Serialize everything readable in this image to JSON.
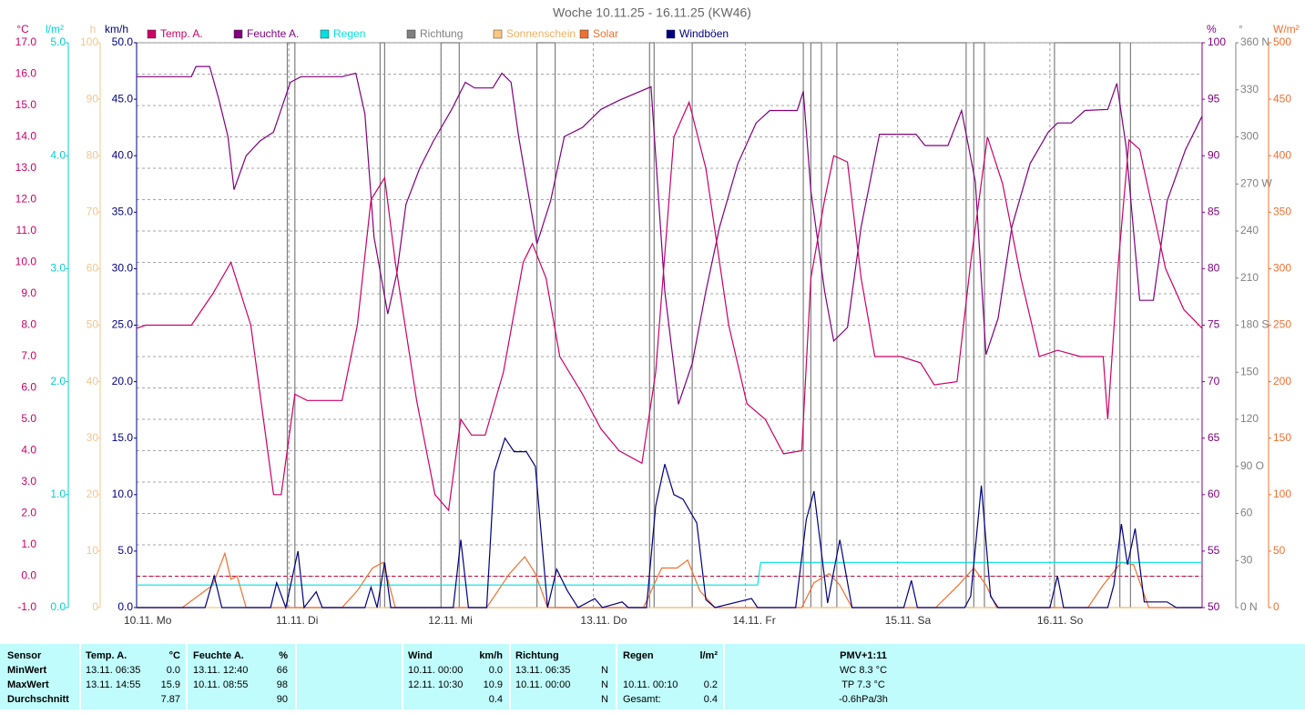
{
  "chart_data": {
    "type": "line",
    "title": "Woche 10.11.25 - 16.11.25 (KW46)",
    "xlim": [
      0,
      7
    ],
    "xticks": [
      {
        "value": 0,
        "label": "10.11. Mo"
      },
      {
        "value": 1,
        "label": "11.11. Di"
      },
      {
        "value": 2,
        "label": "12.11. Mi"
      },
      {
        "value": 3,
        "label": "13.11. Do"
      },
      {
        "value": 4,
        "label": "14.11. Fr"
      },
      {
        "value": 5,
        "label": "15.11. Sa"
      },
      {
        "value": 6,
        "label": "16.11. So"
      }
    ],
    "grid": true,
    "y_axes": [
      {
        "unit": "°C",
        "side": "left",
        "color": "#cc0066",
        "ylim": [
          -1,
          17
        ],
        "yticks": [
          {
            "value": -1,
            "label": "-1.0"
          },
          {
            "value": 0,
            "label": "0.0"
          },
          {
            "value": 1,
            "label": "1.0"
          },
          {
            "value": 2,
            "label": "2.0"
          },
          {
            "value": 3,
            "label": "3.0"
          },
          {
            "value": 4,
            "label": "4.0"
          },
          {
            "value": 5,
            "label": "5.0"
          },
          {
            "value": 6,
            "label": "6.0"
          },
          {
            "value": 7,
            "label": "7.0"
          },
          {
            "value": 8,
            "label": "8.0"
          },
          {
            "value": 9,
            "label": "9.0"
          },
          {
            "value": 10,
            "label": "10.0"
          },
          {
            "value": 11,
            "label": "11.0"
          },
          {
            "value": 12,
            "label": "12.0"
          },
          {
            "value": 13,
            "label": "13.0"
          },
          {
            "value": 14,
            "label": "14.0"
          },
          {
            "value": 15,
            "label": "15.0"
          },
          {
            "value": 16,
            "label": "16.0"
          },
          {
            "value": 17,
            "label": "17.0"
          }
        ]
      },
      {
        "unit": "l/m²",
        "side": "left",
        "color": "#00d0d0",
        "ylim": [
          0,
          5
        ],
        "yticks": [
          {
            "value": 0,
            "label": "0.0"
          },
          {
            "value": 1,
            "label": "1.0"
          },
          {
            "value": 2,
            "label": "2.0"
          },
          {
            "value": 3,
            "label": "3.0"
          },
          {
            "value": 4,
            "label": "4.0"
          },
          {
            "value": 5,
            "label": "5.0"
          }
        ]
      },
      {
        "unit": "h",
        "side": "left",
        "color": "#f0c890",
        "ylim": [
          0,
          100
        ],
        "yticks": [
          0,
          10,
          20,
          30,
          40,
          50,
          60,
          70,
          80,
          90,
          100
        ]
      },
      {
        "unit": "km/h",
        "side": "left",
        "color": "#000080",
        "ylim": [
          0,
          50
        ],
        "yticks": [
          {
            "value": 0,
            "label": "0.0"
          },
          {
            "value": 5,
            "label": "5.0"
          },
          {
            "value": 10,
            "label": "10.0"
          },
          {
            "value": 15,
            "label": "15.0"
          },
          {
            "value": 20,
            "label": "20.0"
          },
          {
            "value": 25,
            "label": "25.0"
          },
          {
            "value": 30,
            "label": "30.0"
          },
          {
            "value": 35,
            "label": "35.0"
          },
          {
            "value": 40,
            "label": "40.0"
          },
          {
            "value": 45,
            "label": "45.0"
          },
          {
            "value": 50,
            "label": "50.0"
          }
        ]
      },
      {
        "unit": "%",
        "side": "right",
        "color": "#800080",
        "ylim": [
          50,
          100
        ],
        "yticks": [
          50,
          55,
          60,
          65,
          70,
          75,
          80,
          85,
          90,
          95,
          100
        ]
      },
      {
        "unit": "°",
        "side": "right",
        "color": "#808080",
        "ylim": [
          0,
          360
        ],
        "yticks": [
          {
            "value": 0,
            "label": "0 N"
          },
          30,
          60,
          {
            "value": 90,
            "label": "90 O"
          },
          120,
          150,
          {
            "value": 180,
            "label": "180 S"
          },
          210,
          240,
          {
            "value": 270,
            "label": "270 W"
          },
          300,
          330,
          {
            "value": 360,
            "label": "360 N"
          }
        ]
      },
      {
        "unit": "W/m²",
        "side": "right",
        "color": "#f07030",
        "ylim": [
          0,
          500
        ],
        "yticks": [
          0,
          50,
          100,
          150,
          200,
          250,
          300,
          350,
          400,
          450,
          500
        ]
      }
    ],
    "series": [
      {
        "name": "Temp. A.",
        "color": "#cc0066",
        "axis": 0,
        "x": [
          0,
          0.06,
          0.36,
          0.5,
          0.62,
          0.75,
          0.9,
          0.95,
          1.04,
          1.12,
          1.35,
          1.45,
          1.54,
          1.63,
          1.7,
          1.84,
          1.96,
          2.05,
          2.13,
          2.2,
          2.29,
          2.41,
          2.54,
          2.6,
          2.69,
          2.78,
          2.93,
          3.05,
          3.17,
          3.32,
          3.41,
          3.53,
          3.63,
          3.74,
          3.89,
          4.01,
          4.13,
          4.25,
          4.37,
          4.43,
          4.52,
          4.58,
          4.67,
          4.76,
          4.85,
          5.02,
          5.15,
          5.24,
          5.39,
          5.48,
          5.59,
          5.69,
          5.81,
          5.93,
          6.05,
          6.2,
          6.35,
          6.38,
          6.45,
          6.52,
          6.59,
          6.76,
          6.88,
          7
        ],
        "values": [
          7.9,
          8.0,
          8.0,
          9.0,
          10.0,
          8.0,
          2.6,
          2.6,
          5.8,
          5.6,
          5.6,
          8.0,
          12.0,
          12.7,
          10.0,
          5.6,
          2.6,
          2.1,
          5.0,
          4.5,
          4.5,
          6.5,
          10.0,
          10.6,
          9.5,
          7.0,
          5.8,
          4.7,
          4.0,
          3.6,
          6.5,
          14.0,
          15.1,
          13.0,
          8.0,
          5.5,
          5.0,
          3.9,
          4.0,
          9.5,
          12.0,
          13.4,
          13.2,
          9.5,
          7.0,
          7.0,
          6.8,
          6.1,
          6.2,
          10.0,
          14.0,
          12.5,
          9.5,
          7.0,
          7.2,
          7.0,
          7.0,
          5.0,
          10.0,
          13.9,
          13.6,
          9.8,
          8.5,
          7.9
        ]
      },
      {
        "name": "Feuchte A.",
        "color": "#800080",
        "axis": 4,
        "x": [
          0,
          0.36,
          0.39,
          0.48,
          0.54,
          0.6,
          0.64,
          0.72,
          0.81,
          0.9,
          1.01,
          1.08,
          1.35,
          1.44,
          1.5,
          1.56,
          1.65,
          1.71,
          1.77,
          1.86,
          1.95,
          2.07,
          2.16,
          2.22,
          2.34,
          2.4,
          2.46,
          2.51,
          2.63,
          2.72,
          2.81,
          2.93,
          3.05,
          3.17,
          3.38,
          3.47,
          3.56,
          3.65,
          3.74,
          3.83,
          3.95,
          4.07,
          4.16,
          4.34,
          4.38,
          4.43,
          4.52,
          4.58,
          4.67,
          4.76,
          4.88,
          5.12,
          5.18,
          5.33,
          5.42,
          5.51,
          5.58,
          5.66,
          5.75,
          5.87,
          5.99,
          6.05,
          6.14,
          6.23,
          6.38,
          6.44,
          6.5,
          6.59,
          6.68,
          6.77,
          6.89,
          7
        ],
        "values": [
          97,
          97,
          97.9,
          97.9,
          95,
          91.7,
          87,
          90,
          91.3,
          92.1,
          96.5,
          97,
          97,
          97.3,
          93.7,
          82.8,
          76,
          79.6,
          85.7,
          88.9,
          91.3,
          94.1,
          96.5,
          96,
          96,
          97.3,
          96.5,
          91.7,
          82.2,
          86,
          91.7,
          92.5,
          94.1,
          94.9,
          96.1,
          78,
          68,
          71.6,
          78,
          83.7,
          89.3,
          92.9,
          94,
          94,
          95.7,
          86.9,
          78,
          73.6,
          74.8,
          83.7,
          91.9,
          91.9,
          90.9,
          90.9,
          94,
          87.7,
          72.4,
          75.6,
          83.7,
          89.3,
          92.1,
          92.9,
          92.9,
          94,
          94.1,
          96.4,
          90.9,
          77.2,
          77.2,
          86,
          90.5,
          93.5
        ]
      },
      {
        "name": "Regen",
        "color": "#00e0e0",
        "axis": 1,
        "x": [
          0,
          4.08,
          4.1,
          7
        ],
        "values": [
          0.2,
          0.2,
          0.4,
          0.4
        ]
      },
      {
        "name": "Richtung",
        "color": "#808080",
        "axis": 5,
        "x": [
          0.99,
          0.99,
          1.04,
          1.04,
          1.6,
          1.6,
          1.63,
          1.63,
          2.0,
          2.0,
          2.12,
          2.12,
          2.63,
          2.63,
          2.75,
          2.75,
          3.37,
          3.37,
          3.4,
          3.4,
          3.65,
          3.65,
          4.38,
          4.38,
          4.43,
          4.43,
          4.5,
          4.5,
          4.6,
          4.6,
          5.45,
          5.45,
          5.5,
          5.5,
          5.57,
          5.57,
          6.03,
          6.03,
          6.46,
          6.46,
          6.53,
          6.53
        ],
        "values": [
          0,
          360,
          360,
          0,
          0,
          360,
          360,
          0,
          0,
          360,
          360,
          0,
          0,
          360,
          360,
          0,
          0,
          360,
          360,
          0,
          0,
          360,
          360,
          0,
          0,
          360,
          360,
          0,
          0,
          360,
          360,
          0,
          0,
          360,
          360,
          0,
          0,
          360,
          360,
          0,
          0,
          360
        ]
      },
      {
        "name": "Sonnenschein",
        "color": "#ffc880",
        "axis": 2,
        "x": [
          0,
          7
        ],
        "values": [
          0,
          0
        ]
      },
      {
        "name": "Solar",
        "color": "#f07030",
        "axis": 6,
        "x": [
          0,
          0.3,
          0.4,
          0.5,
          0.58,
          0.62,
          0.66,
          0.72,
          1.35,
          1.45,
          1.55,
          1.62,
          1.7,
          2.3,
          2.45,
          2.55,
          2.62,
          2.7,
          3.33,
          3.45,
          3.55,
          3.62,
          3.7,
          3.8,
          4.37,
          4.45,
          4.55,
          4.62,
          4.7,
          5.25,
          5.4,
          5.5,
          5.58,
          5.65,
          6.25,
          6.35,
          6.47,
          6.55,
          6.65,
          7
        ],
        "values": [
          0,
          0,
          10,
          20,
          48,
          25,
          28,
          0,
          0,
          15,
          35,
          40,
          0,
          0,
          30,
          45,
          30,
          0,
          0,
          35,
          35,
          42,
          15,
          0,
          0,
          22,
          30,
          20,
          0,
          0,
          20,
          35,
          20,
          0,
          0,
          20,
          40,
          38,
          0,
          0
        ]
      },
      {
        "name": "Windböen",
        "color": "#000080",
        "axis": 3,
        "x": [
          0,
          0.45,
          0.51,
          0.56,
          0.88,
          0.92,
          0.98,
          1.06,
          1.1,
          1.18,
          1.22,
          1.5,
          1.54,
          1.58,
          1.63,
          1.67,
          2.08,
          2.13,
          2.18,
          2.3,
          2.35,
          2.42,
          2.48,
          2.56,
          2.62,
          2.7,
          2.76,
          2.83,
          2.9,
          3.01,
          3.06,
          3.19,
          3.23,
          3.35,
          3.41,
          3.47,
          3.53,
          3.59,
          3.68,
          3.74,
          3.8,
          4.04,
          4.08,
          4.33,
          4.4,
          4.45,
          4.54,
          4.62,
          4.7,
          5.04,
          5.09,
          5.13,
          5.44,
          5.48,
          5.55,
          5.61,
          5.66,
          6.0,
          6.05,
          6.09,
          6.38,
          6.42,
          6.47,
          6.51,
          6.56,
          6.62,
          6.77,
          6.83,
          7
        ],
        "values": [
          0,
          0,
          2.8,
          0,
          0,
          2.2,
          0,
          5.0,
          0,
          1.4,
          0,
          0,
          1.8,
          0,
          4.0,
          0,
          0,
          6.0,
          0,
          0,
          12.0,
          15.0,
          13.8,
          13.8,
          12.5,
          0,
          3.4,
          1.5,
          0,
          0.8,
          0,
          0.5,
          0,
          0,
          9.0,
          12.7,
          10.0,
          9.6,
          7.5,
          0.7,
          0,
          0.8,
          0,
          0,
          7.8,
          10.3,
          0.4,
          6.0,
          0,
          0,
          2.4,
          0,
          0,
          1.0,
          10.8,
          1.0,
          0,
          0,
          2.8,
          0,
          0,
          2.0,
          7.4,
          3.8,
          7.0,
          0.5,
          0.5,
          0,
          0
        ]
      }
    ]
  },
  "table": {
    "rows": [
      [
        "Sensor",
        "Temp. A.",
        "°C",
        "Feuchte A.",
        "%",
        "Wind",
        "km/h",
        "Richtung",
        null,
        "Regen",
        "l/m²",
        "PMV+1:11"
      ],
      [
        "MinWert",
        "13.11.  06:35",
        "0.0",
        "13.11.  12:40",
        "66",
        "10.11.  00:00",
        "0.0",
        "13.11.  06:35",
        "N",
        null,
        null,
        "WC 8.3 °C"
      ],
      [
        "MaxWert",
        "13.11.  14:55",
        "15.9",
        "10.11.  08:55",
        "98",
        "12.11.  10:30",
        "10.9",
        "10.11.  00:00",
        "N",
        "10.11.  00:10",
        "0.2",
        "TP 7.3 °C"
      ],
      [
        "Durchschnitt",
        null,
        "7.87",
        null,
        "90",
        null,
        "0.4",
        null,
        "N",
        "Gesamt:",
        "0.4",
        "-0.6hPa/3h"
      ]
    ]
  }
}
